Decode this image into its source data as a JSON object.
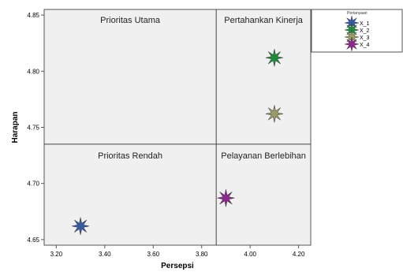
{
  "chart_data": {
    "type": "scatter",
    "xlabel": "Persepsi",
    "ylabel": "Harapan",
    "xlim": [
      3.15,
      4.25
    ],
    "ylim": [
      4.645,
      4.855
    ],
    "x_ticks": [
      "3.20",
      "3.40",
      "3.60",
      "3.80",
      "4.00",
      "4.20"
    ],
    "y_ticks": [
      "4.65",
      "4.70",
      "4.75",
      "4.80",
      "4.85"
    ],
    "reference_lines": {
      "x": 3.86,
      "y": 4.735
    },
    "quadrants": {
      "top_left": "Prioritas Utama",
      "top_right": "Pertahankan Kinerja",
      "bottom_left": "Prioritas Rendah",
      "bottom_right": "Pelayanan Berlebihan"
    },
    "legend": {
      "title": "Pertanyaan",
      "position": "top-right"
    },
    "series": [
      {
        "name": "X_1",
        "x": 3.3,
        "y": 4.662,
        "color": "#3a5aa0"
      },
      {
        "name": "X_2",
        "x": 4.1,
        "y": 4.812,
        "color": "#1f8a3c"
      },
      {
        "name": "X_3",
        "x": 4.1,
        "y": 4.762,
        "color": "#9a9a6a"
      },
      {
        "name": "X_4",
        "x": 3.9,
        "y": 4.687,
        "color": "#8a2a8a"
      }
    ],
    "background_color": "#f0f0f0",
    "grid": false
  }
}
